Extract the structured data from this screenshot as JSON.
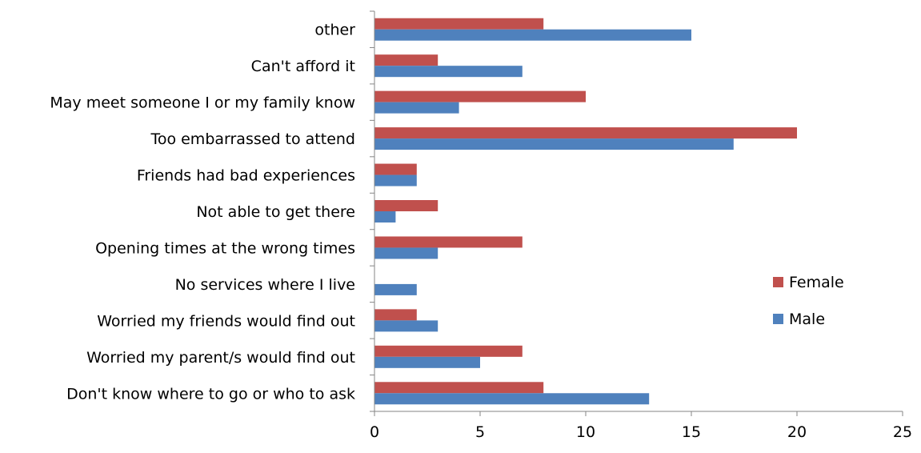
{
  "chart_data": {
    "type": "bar",
    "orientation": "horizontal",
    "title": "",
    "categories": [
      "Don't know where to go or who to ask",
      "Worried my parent/s would find out",
      "Worried my friends would find out",
      "No services where I live",
      "Opening times at the wrong times",
      "Not able to get there",
      "Friends had bad experiences",
      "Too embarrassed to attend",
      "May meet someone I or my family know",
      "Can't afford it",
      "other"
    ],
    "series": [
      {
        "name": "Male",
        "color": "#4F81BD",
        "values": [
          13,
          5,
          3,
          2,
          3,
          1,
          2,
          17,
          4,
          7,
          15
        ]
      },
      {
        "name": "Female",
        "color": "#C0504D",
        "values": [
          8,
          7,
          2,
          0,
          7,
          3,
          2,
          20,
          10,
          3,
          8
        ]
      }
    ],
    "xlim": [
      0,
      25
    ],
    "xticks": [
      "0",
      "5",
      "10",
      "15",
      "20",
      "25"
    ],
    "xlabel": "",
    "ylabel": "",
    "grid": false,
    "legend_position": "right"
  }
}
